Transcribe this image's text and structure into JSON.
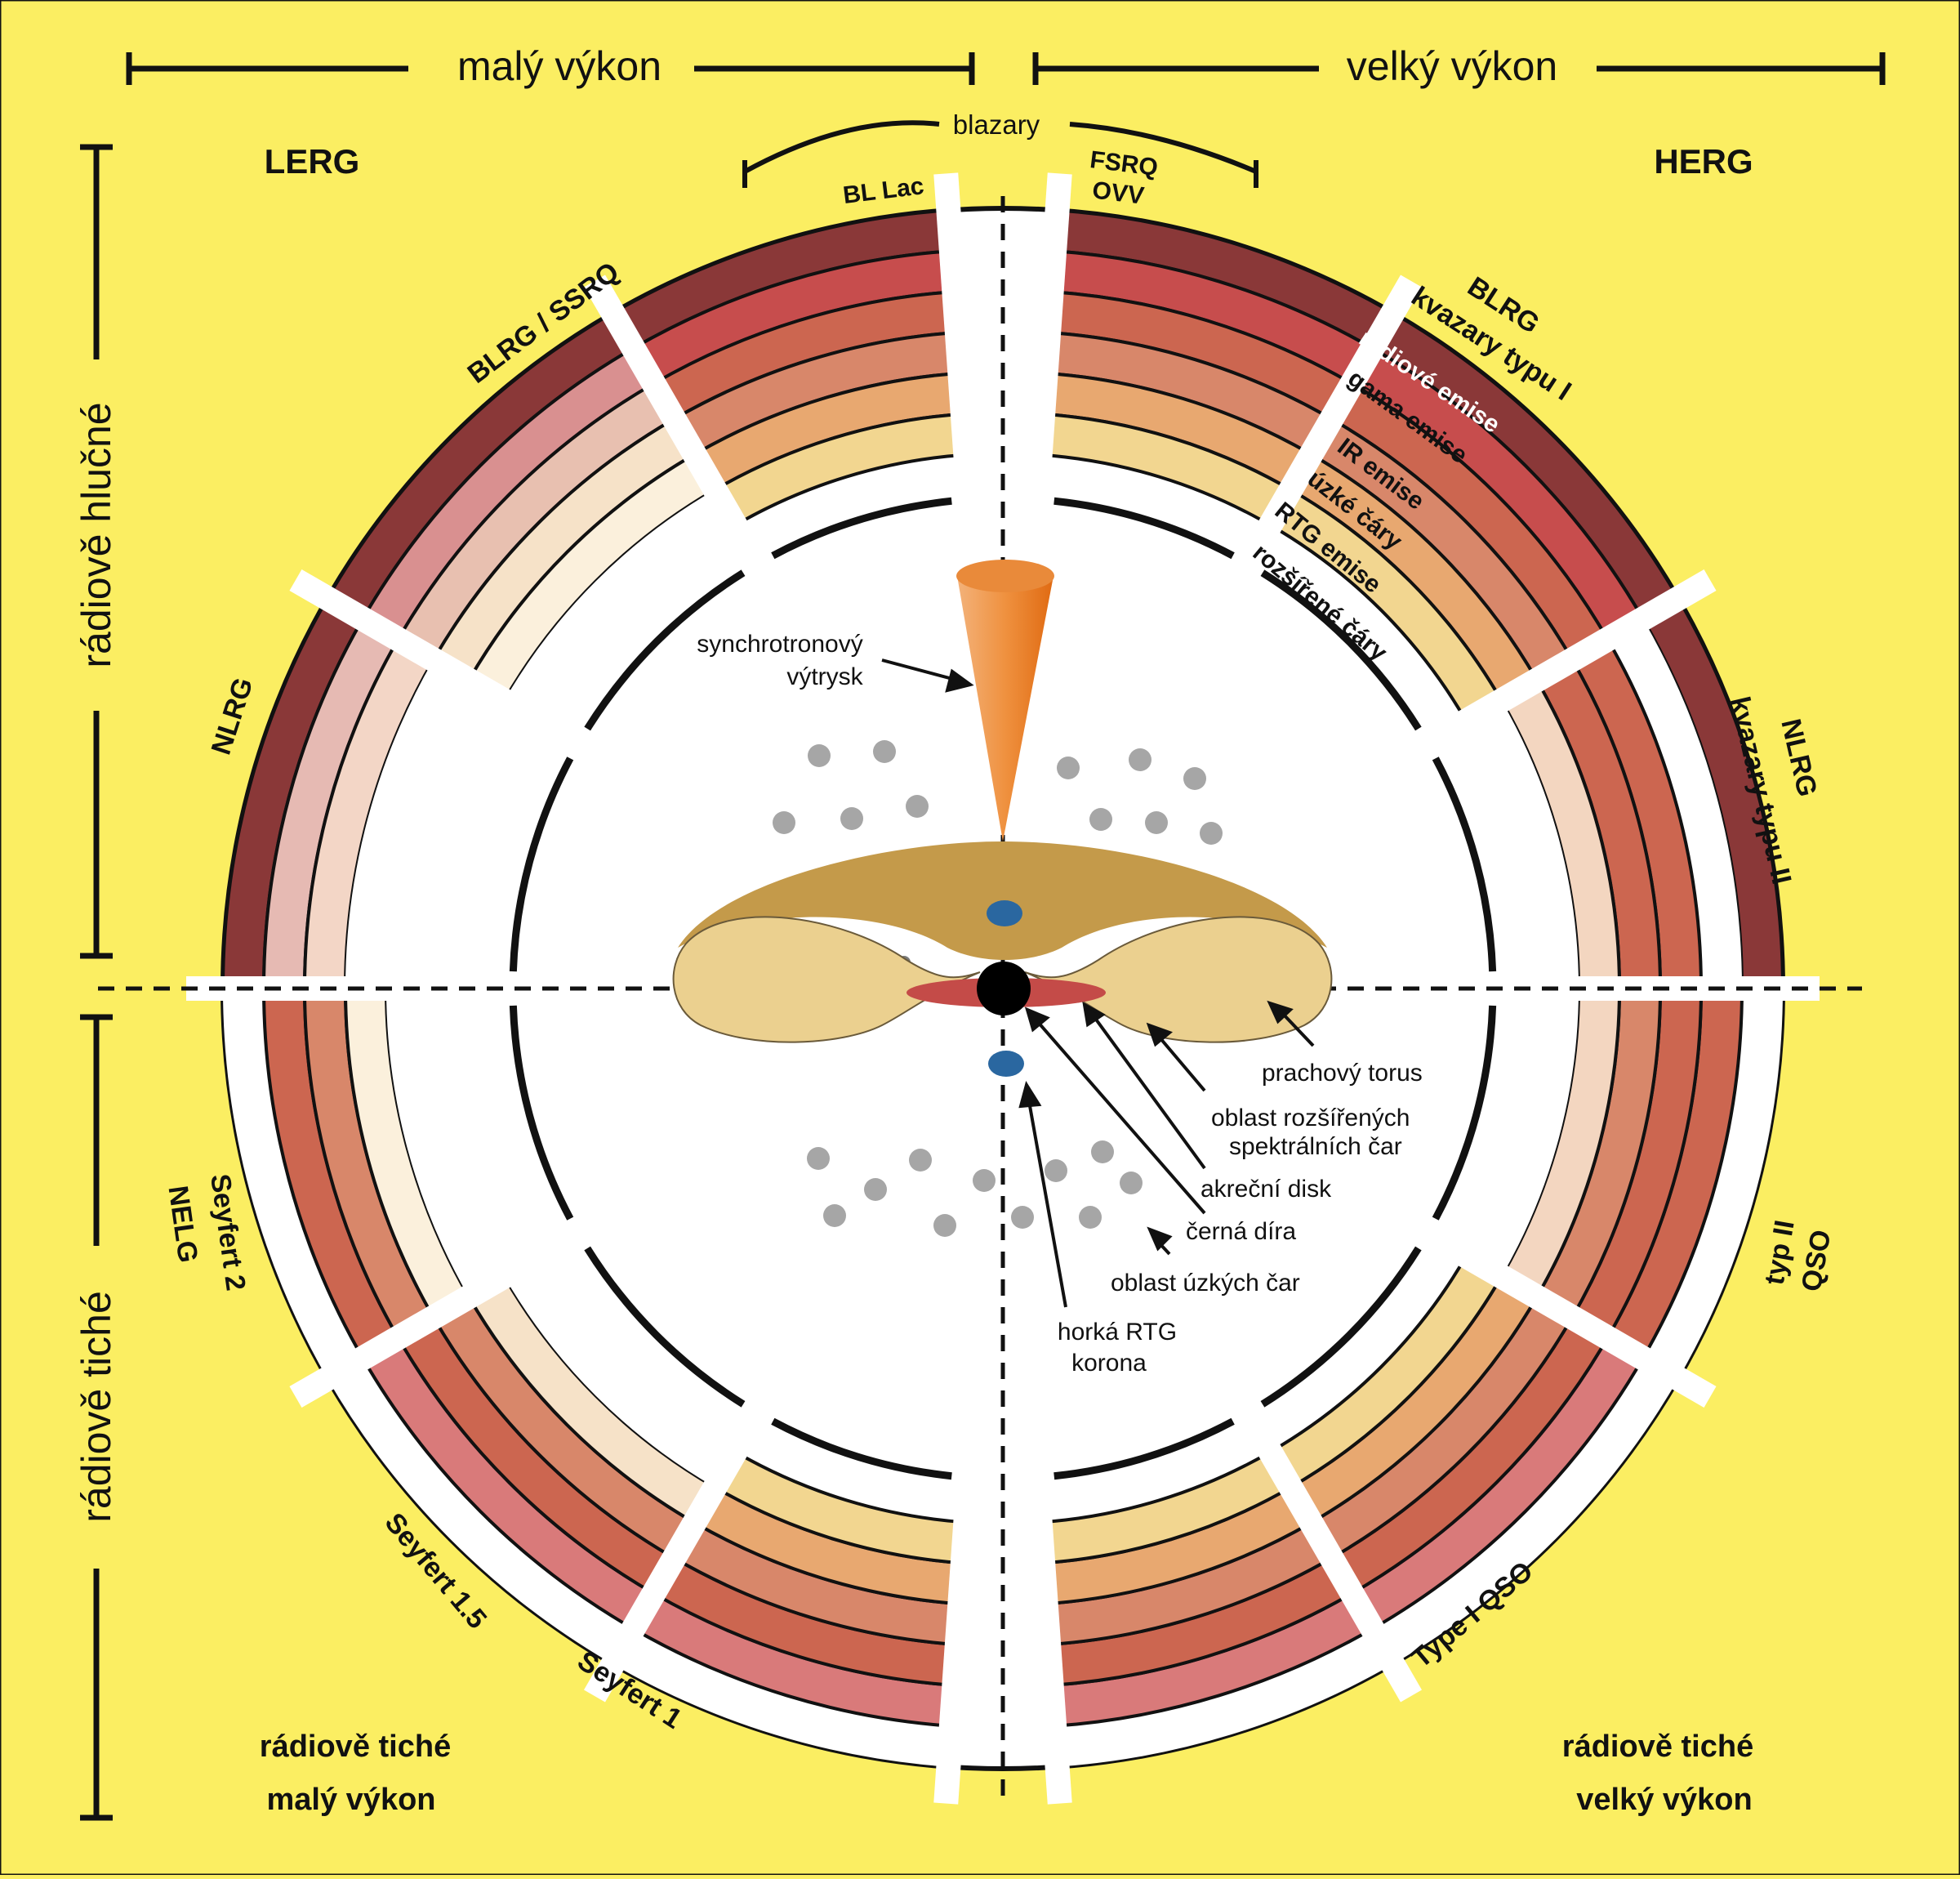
{
  "title_bars": {
    "low_power": "malý výkon",
    "high_power": "velký výkon",
    "radio_loud": "rádiově hlučné",
    "radio_quiet": "rádiově tiché",
    "blazars": "blazary"
  },
  "groups": {
    "lerg": "LERG",
    "herg": "HERG",
    "bl_lac": "BL Lac",
    "fsrq": "FSRQ",
    "ovv": "OVV"
  },
  "segments": {
    "blrg_ssrq": "BLRG / SSRQ",
    "nlrg_left": "NLRG",
    "blrg_right_1": "BLRG",
    "blrg_right_2": "kvazary typu I",
    "nlrg_right_1": "NLRG",
    "nlrg_right_2": "kvazary typu II",
    "seyfert2_1": "Seyfert 2",
    "seyfert2_2": "NELG",
    "typ2_1": "typ II",
    "typ2_2": "QSO",
    "seyfert15": "Seyfert 1.5",
    "seyfert1": "Seyfert 1",
    "type1_qso": "Type I QSO"
  },
  "bands": {
    "radio": "rádiové emise",
    "gamma": "gama emise",
    "ir": "IR emise",
    "narrow": "úzké čáry",
    "xray": "RTG emise",
    "broad": "rozšířené čáry"
  },
  "corners": {
    "bottom_left_1": "rádiově tiché",
    "bottom_left_2": "malý výkon",
    "bottom_right_1": "rádiově tiché",
    "bottom_right_2": "velký výkon"
  },
  "annotations": {
    "jet_1": "synchrotronový",
    "jet_2": "výtrysk",
    "torus": "prachový torus",
    "blr_1": "oblast rozšířených",
    "blr_2": "spektrálních čar",
    "disk": "akreční disk",
    "bh": "černá díra",
    "nlr": "oblast úzkých čar",
    "corona_1": "horká RTG",
    "corona_2": "korona"
  },
  "colors": {
    "background": "#fbee62",
    "radio": "#8a3838",
    "gamma": "#c74d4d",
    "ir": "#cc6650",
    "narrow": "#d8876a",
    "xray": "#e8a870",
    "broad": "#f2d690",
    "torus_back": "#c49a4a",
    "torus_front": "#ebd08f",
    "jet": "#ea7a22",
    "disk": "#c44b48",
    "blob": "#2a67a0",
    "cloud": "#a6a6a6"
  }
}
